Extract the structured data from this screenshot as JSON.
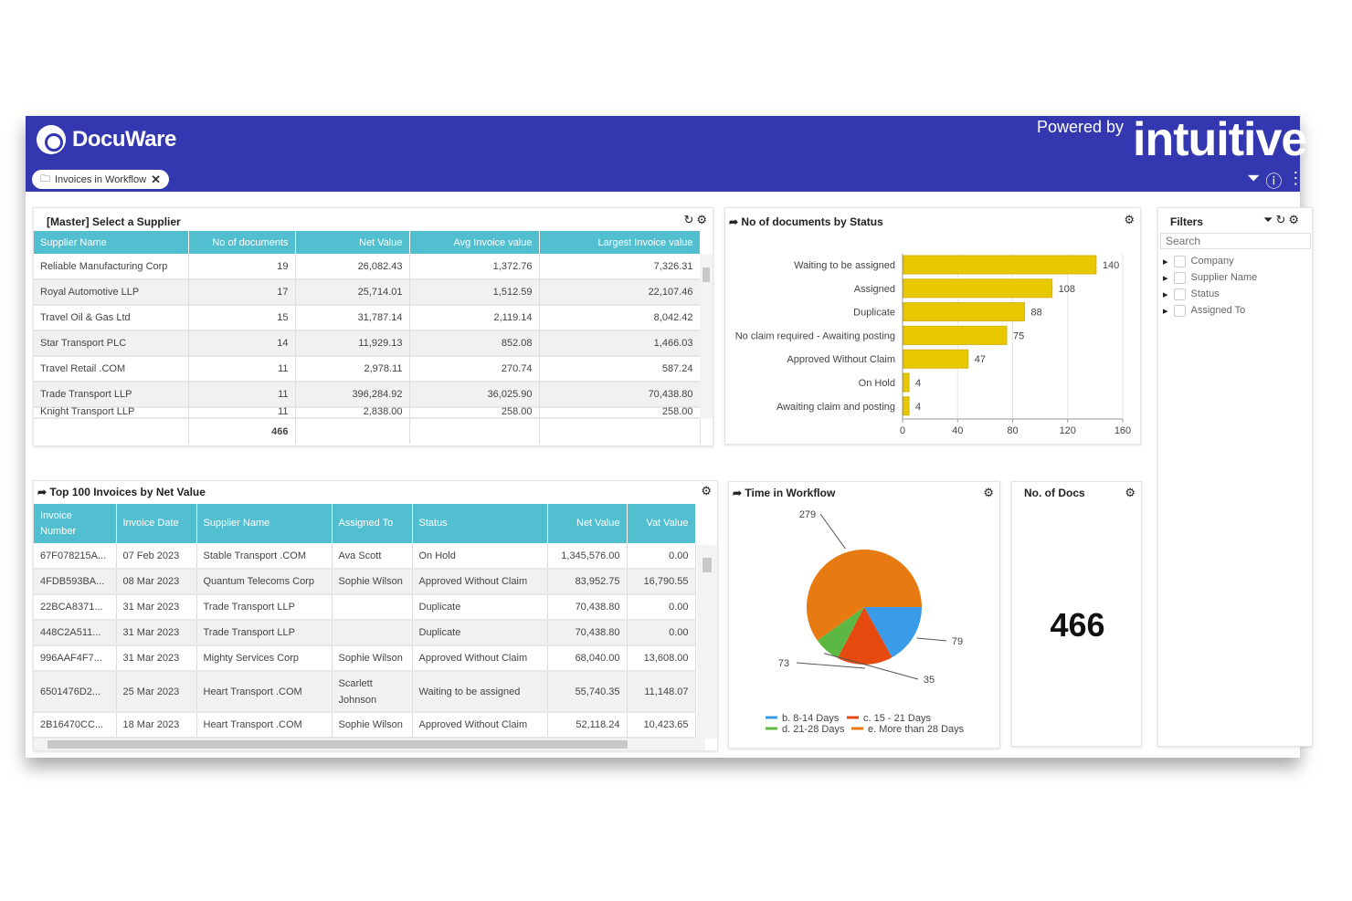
{
  "header": {
    "brand": "DocuWare",
    "tab_label": "Invoices in Workflow",
    "powered_by": "Powered by",
    "partner": "intuitive",
    "colors": {
      "header": "#3338b0",
      "table_header": "#52bfd0"
    }
  },
  "master": {
    "title": "[Master] Select a Supplier",
    "columns": [
      "Supplier Name",
      "No of documents",
      "Net Value",
      "Avg Invoice value",
      "Largest Invoice value"
    ],
    "rows": [
      [
        "Reliable Manufacturing Corp",
        "19",
        "26,082.43",
        "1,372.76",
        "7,326.31"
      ],
      [
        "Royal Automotive LLP",
        "17",
        "25,714.01",
        "1,512.59",
        "22,107.46"
      ],
      [
        "Travel Oil & Gas Ltd",
        "15",
        "31,787.14",
        "2,119.14",
        "8,042.42"
      ],
      [
        "Star Transport PLC",
        "14",
        "11,929.13",
        "852.08",
        "1,466.03"
      ],
      [
        "Travel Retail .COM",
        "11",
        "2,978.11",
        "270.74",
        "587.24"
      ],
      [
        "Trade Transport LLP",
        "11",
        "396,284.92",
        "36,025.90",
        "70,438.80"
      ],
      [
        "Knight Transport LLP",
        "11",
        "2,838.00",
        "258.00",
        "258.00"
      ]
    ],
    "total": "466"
  },
  "status_chart": {
    "title": "No of documents by Status"
  },
  "filters": {
    "title": "Filters",
    "search_placeholder": "Search",
    "items": [
      "Company",
      "Supplier Name",
      "Status",
      "Assigned To"
    ]
  },
  "top100": {
    "title": "Top 100 Invoices by Net Value",
    "columns": [
      "Invoice Number",
      "Invoice Date",
      "Supplier Name",
      "Assigned To",
      "Status",
      "Net Value",
      "Vat Value"
    ],
    "rows": [
      [
        "67F078215A...",
        "07 Feb 2023",
        "Stable Transport .COM",
        "Ava Scott",
        "On Hold",
        "1,345,576.00",
        "0.00"
      ],
      [
        "4FDB593BA...",
        "08 Mar 2023",
        "Quantum Telecoms Corp",
        "Sophie Wilson",
        "Approved Without Claim",
        "83,952.75",
        "16,790.55"
      ],
      [
        "22BCA8371...",
        "31 Mar 2023",
        "Trade Transport LLP",
        "",
        "Duplicate",
        "70,438.80",
        "0.00"
      ],
      [
        "448C2A511...",
        "31 Mar 2023",
        "Trade Transport LLP",
        "",
        "Duplicate",
        "70,438.80",
        "0.00"
      ],
      [
        "996AAF4F7...",
        "31 Mar 2023",
        "Mighty Services Corp",
        "Sophie Wilson",
        "Approved Without Claim",
        "68,040.00",
        "13,608.00"
      ],
      [
        "6501476D2...",
        "25 Mar 2023",
        "Heart Transport .COM",
        "Scarlett Johnson",
        "Waiting to be assigned",
        "55,740.35",
        "11,148.07"
      ],
      [
        "2B16470CC...",
        "18 Mar 2023",
        "Heart Transport .COM",
        "Sophie Wilson",
        "Approved Without Claim",
        "52,118.24",
        "10,423.65"
      ]
    ]
  },
  "workflow": {
    "title": "Time in Workflow"
  },
  "kpi": {
    "title": "No. of Docs",
    "value": "466"
  },
  "chart_data": [
    {
      "type": "bar",
      "orientation": "horizontal",
      "title": "No of documents by Status",
      "categories": [
        "Waiting to be assigned",
        "Assigned",
        "Duplicate",
        "No claim required - Awaiting posting",
        "Approved Without Claim",
        "On Hold",
        "Awaiting claim and posting"
      ],
      "values": [
        140,
        108,
        88,
        75,
        47,
        4,
        4
      ],
      "xlim": [
        0,
        160
      ],
      "xticks": [
        0,
        40,
        80,
        120,
        160
      ],
      "color": "#e8c800",
      "grid": true
    },
    {
      "type": "pie",
      "title": "Time in Workflow",
      "categories": [
        "b. 8-14 Days",
        "c. 15 - 21 Days",
        "d. 21-28 Days",
        "e. More than 28 Days"
      ],
      "values": [
        79,
        73,
        35,
        279
      ],
      "colors": [
        "#3a9be8",
        "#e64a0f",
        "#5cb842",
        "#e87a12"
      ],
      "legend": "bottom"
    }
  ]
}
